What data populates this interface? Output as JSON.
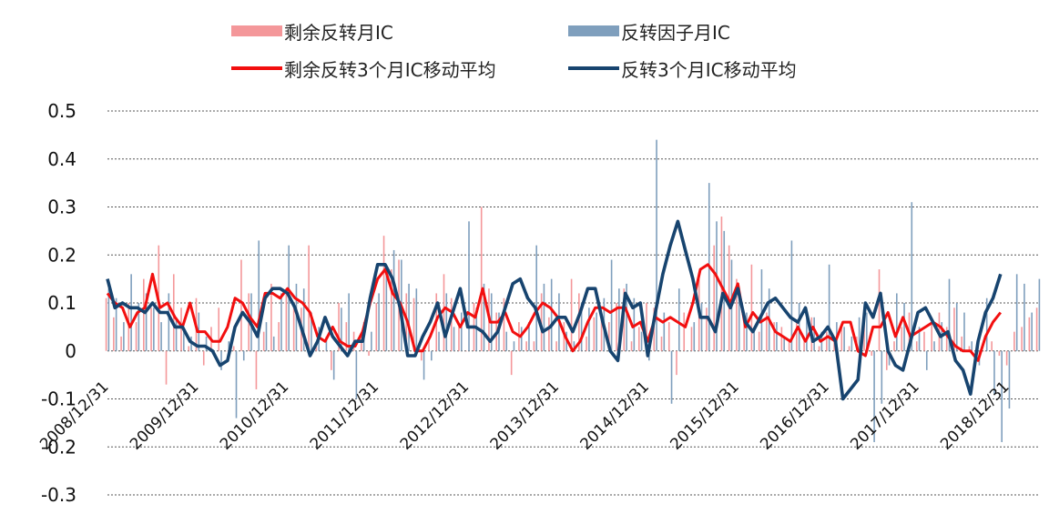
{
  "chart_data": {
    "type": "bar",
    "legend": [
      {
        "label": "剩余反转月IC",
        "kind": "bar",
        "color": "#f4979a"
      },
      {
        "label": "反转因子月IC",
        "kind": "bar",
        "color": "#7f9fbd"
      },
      {
        "label": "剩余反转3个月IC移动平均",
        "kind": "line",
        "color": "#f20f0f"
      },
      {
        "label": "反转3个月IC移动平均",
        "kind": "line",
        "color": "#17446f"
      }
    ],
    "ylim": [
      -0.3,
      0.5
    ],
    "yticks": [
      "0.5",
      "0.4",
      "0.3",
      "0.2",
      "0.1",
      "0",
      "-0.1",
      "-0.2",
      "-0.3"
    ],
    "xtick_labels": [
      "2008/12/31",
      "2009/12/31",
      "2010/12/31",
      "2011/12/31",
      "2012/12/31",
      "2013/12/31",
      "2014/12/31",
      "2015/12/31",
      "2016/12/31",
      "2017/12/31",
      "2018/12/31"
    ],
    "xtick_index": [
      0,
      12,
      24,
      36,
      48,
      60,
      72,
      84,
      96,
      108,
      120
    ],
    "grid": "horizontal dashed",
    "series": [
      {
        "name": "剩余反转月IC",
        "type": "bar",
        "values": [
          0.11,
          0.07,
          0.03,
          0.1,
          0.06,
          0.15,
          0.09,
          0.22,
          -0.07,
          0.16,
          0.09,
          0.01,
          0.11,
          -0.03,
          0.05,
          0.09,
          0.0,
          0.01,
          0.19,
          0.12,
          -0.08,
          0.04,
          0.14,
          0.06,
          0.13,
          0.1,
          0.09,
          0.22,
          0.01,
          0.0,
          -0.04,
          0.1,
          0.06,
          0.04,
          0.03,
          -0.01,
          0.1,
          0.24,
          0.17,
          0.19,
          0.12,
          0.11,
          -0.02,
          0.03,
          0.12,
          0.16,
          0.11,
          0.05,
          0.0,
          0.1,
          0.3,
          0.13,
          0.08,
          0.11,
          -0.05,
          0.06,
          0.02,
          0.02,
          0.12,
          0.07,
          0.02,
          0.06,
          0.15,
          0.12,
          0.03,
          0.07,
          0.08,
          0.06,
          0.1,
          0.13,
          0.02,
          0.05,
          0.1,
          0.09,
          0.03,
          0.06,
          -0.05,
          0.08,
          0.05,
          0.15,
          0.09,
          0.22,
          0.28,
          0.22,
          0.15,
          0.06,
          0.18,
          0.04,
          0.08,
          0.06,
          0.05,
          0.02,
          0.06,
          0.03,
          0.07,
          0.01,
          0.04,
          0.02,
          0.05,
          0.01,
          0.03,
          0.06,
          -0.01,
          0.17,
          -0.04,
          0.02,
          0.05,
          0.08,
          0.02,
          0.04,
          0.06,
          0.08,
          0.05,
          0.09,
          0.03,
          0.01,
          -0.02,
          0.0,
          0.02,
          -0.01,
          -0.03,
          0.04,
          0.05,
          0.07,
          0.09
        ],
        "color": "#f4979a"
      },
      {
        "name": "反转因子月IC",
        "type": "bar",
        "values": [
          0.13,
          0.11,
          0.06,
          0.16,
          0.1,
          0.12,
          0.09,
          0.06,
          0.12,
          0.07,
          0.05,
          0.03,
          0.08,
          0.03,
          0.0,
          -0.04,
          0.02,
          -0.14,
          -0.02,
          0.12,
          0.23,
          0.06,
          0.03,
          0.12,
          0.22,
          0.14,
          0.13,
          0.08,
          0.05,
          0.03,
          -0.06,
          0.09,
          0.12,
          -0.1,
          0.06,
          0.04,
          0.12,
          0.16,
          0.21,
          0.19,
          0.14,
          0.13,
          -0.06,
          -0.02,
          0.04,
          0.12,
          0.05,
          0.08,
          0.27,
          0.09,
          0.14,
          0.12,
          0.08,
          0.04,
          0.02,
          0.05,
          0.06,
          0.22,
          0.14,
          0.15,
          0.12,
          0.04,
          0.02,
          0.1,
          0.09,
          0.08,
          0.11,
          0.19,
          0.13,
          0.14,
          0.11,
          0.04,
          -0.02,
          0.44,
          0.08,
          -0.11,
          0.13,
          0.0,
          0.06,
          0.1,
          0.35,
          0.27,
          0.25,
          0.19,
          0.13,
          0.08,
          0.05,
          0.17,
          0.13,
          0.06,
          0.03,
          0.23,
          0.1,
          0.08,
          0.07,
          0.04,
          0.18,
          0.06,
          0.05,
          0.03,
          0.07,
          0.08,
          -0.19,
          -0.11,
          -0.03,
          0.12,
          0.1,
          0.31,
          0.05,
          -0.04,
          0.02,
          0.06,
          0.15,
          0.1,
          0.08,
          0.02,
          -0.03,
          0.11,
          -0.09,
          -0.19,
          -0.12,
          0.16,
          0.14,
          0.08,
          0.15
        ],
        "color": "#7f9fbd"
      },
      {
        "name": "剩余反转3个月IC移动平均",
        "type": "line",
        "values": [
          0.12,
          0.1,
          0.09,
          0.05,
          0.08,
          0.09,
          0.16,
          0.09,
          0.1,
          0.07,
          0.05,
          0.1,
          0.04,
          0.04,
          0.02,
          0.02,
          0.05,
          0.11,
          0.1,
          0.07,
          0.05,
          0.12,
          0.12,
          0.11,
          0.13,
          0.11,
          0.1,
          0.08,
          0.03,
          0.02,
          0.05,
          0.02,
          0.01,
          0.01,
          0.04,
          0.1,
          0.15,
          0.17,
          0.12,
          0.1,
          0.06,
          0.0,
          0.0,
          0.03,
          0.07,
          0.09,
          0.08,
          0.05,
          0.08,
          0.07,
          0.13,
          0.06,
          0.06,
          0.08,
          0.04,
          0.03,
          0.05,
          0.08,
          0.1,
          0.09,
          0.07,
          0.03,
          0.0,
          0.02,
          0.06,
          0.09,
          0.09,
          0.08,
          0.09,
          0.09,
          0.05,
          0.06,
          0.02,
          0.07,
          0.06,
          0.07,
          0.06,
          0.05,
          0.1,
          0.17,
          0.18,
          0.16,
          0.13,
          0.1,
          0.14,
          0.05,
          0.08,
          0.06,
          0.07,
          0.04,
          0.03,
          0.02,
          0.05,
          0.02,
          0.05,
          0.02,
          0.03,
          0.02,
          0.06,
          0.06,
          0.0,
          -0.01,
          0.05,
          0.05,
          0.08,
          0.03,
          0.07,
          0.03,
          0.04,
          0.05,
          0.06,
          0.05,
          0.03,
          0.01,
          0.0,
          0.0,
          -0.02,
          0.03,
          0.06,
          0.08
        ],
        "color": "#f20f0f"
      },
      {
        "name": "反转3个月IC移动平均",
        "type": "line",
        "values": [
          0.15,
          0.09,
          0.1,
          0.09,
          0.09,
          0.08,
          0.1,
          0.08,
          0.08,
          0.05,
          0.05,
          0.02,
          0.01,
          0.01,
          0.0,
          -0.03,
          -0.02,
          0.05,
          0.08,
          0.06,
          0.03,
          0.11,
          0.13,
          0.13,
          0.12,
          0.09,
          0.04,
          -0.01,
          0.02,
          0.07,
          0.03,
          0.01,
          -0.01,
          0.02,
          0.02,
          0.11,
          0.18,
          0.18,
          0.15,
          0.09,
          -0.01,
          -0.01,
          0.03,
          0.06,
          0.1,
          0.03,
          0.08,
          0.13,
          0.05,
          0.05,
          0.04,
          0.02,
          0.04,
          0.09,
          0.14,
          0.15,
          0.11,
          0.09,
          0.04,
          0.05,
          0.07,
          0.07,
          0.04,
          0.08,
          0.13,
          0.13,
          0.06,
          0.0,
          -0.02,
          0.12,
          0.09,
          0.1,
          -0.01,
          0.08,
          0.16,
          0.22,
          0.27,
          0.21,
          0.15,
          0.07,
          0.07,
          0.04,
          0.12,
          0.09,
          0.13,
          0.06,
          0.04,
          0.07,
          0.1,
          0.11,
          0.09,
          0.07,
          0.06,
          0.09,
          0.02,
          0.03,
          0.05,
          0.02,
          -0.1,
          -0.08,
          -0.06,
          0.1,
          0.07,
          0.12,
          0.0,
          -0.03,
          -0.04,
          0.02,
          0.08,
          0.09,
          0.06,
          0.03,
          0.04,
          -0.02,
          -0.04,
          -0.09,
          0.02,
          0.08,
          0.11,
          0.16
        ],
        "color": "#17446f"
      }
    ]
  }
}
